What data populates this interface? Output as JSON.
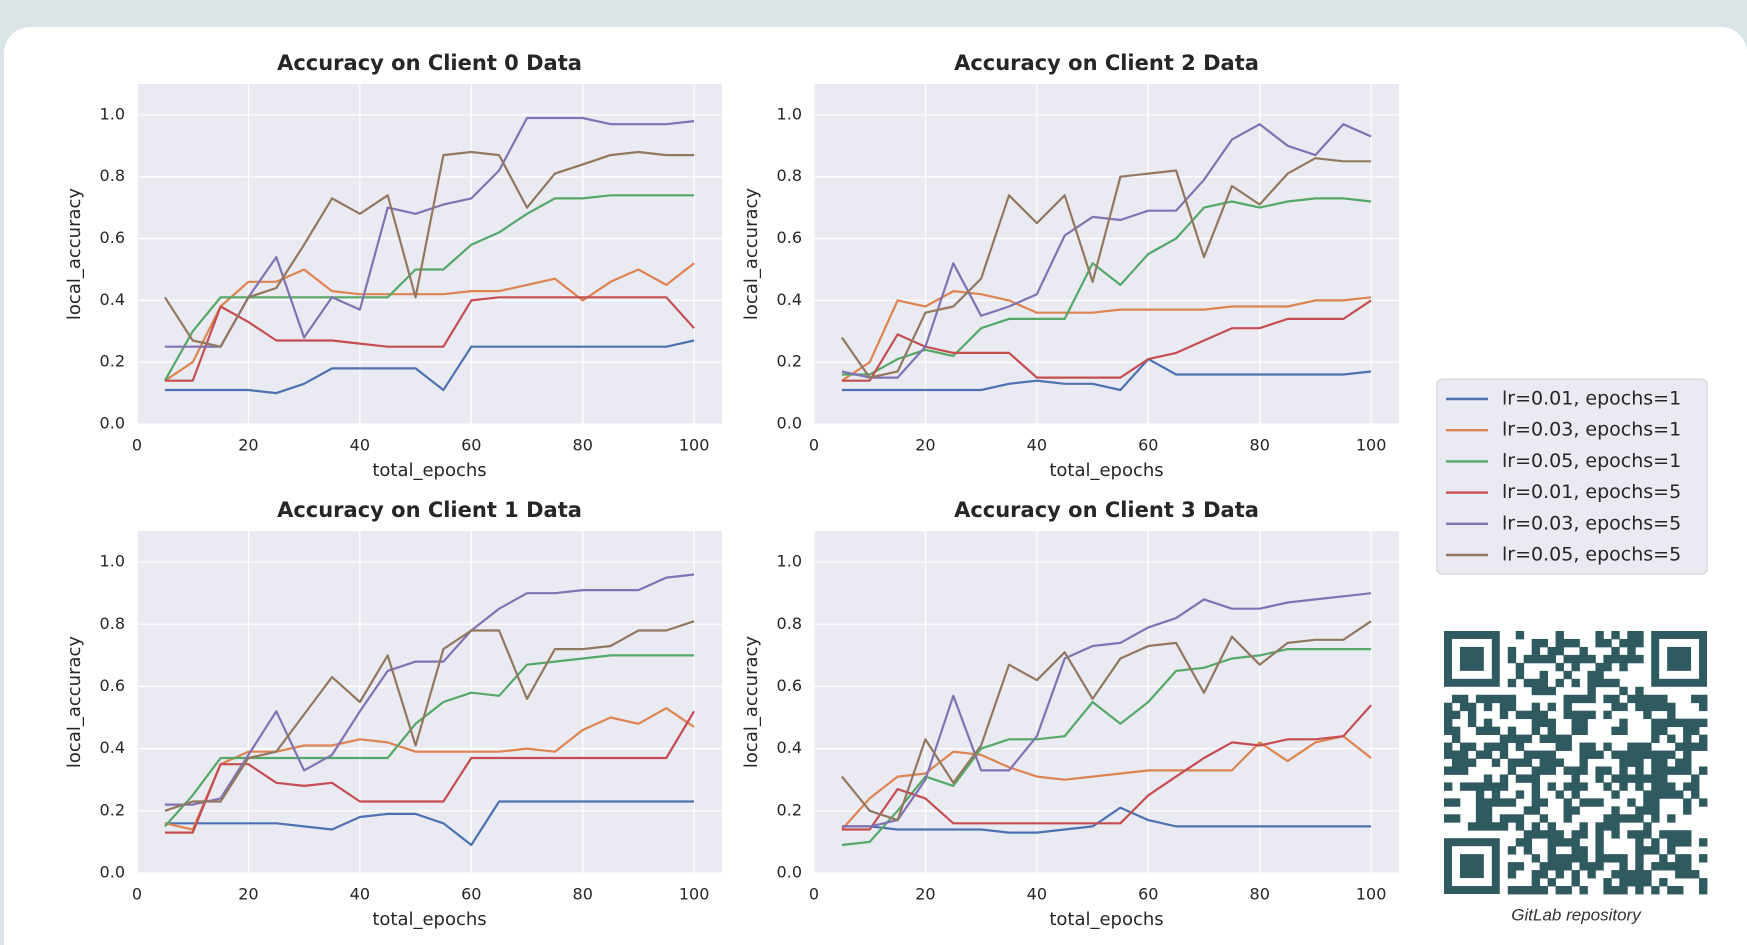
{
  "chart_data": [
    {
      "type": "line",
      "title": "Accuracy on Client 0 Data",
      "xlabel": "total_epochs",
      "ylabel": "local_accuracy",
      "x": [
        5,
        10,
        15,
        20,
        25,
        30,
        35,
        40,
        45,
        50,
        55,
        60,
        65,
        70,
        75,
        80,
        85,
        90,
        95,
        100
      ],
      "xlim": [
        0,
        105
      ],
      "ylim": [
        0,
        1.1
      ],
      "xticks": [
        0,
        20,
        40,
        60,
        80,
        100
      ],
      "yticks": [
        {
          "value": 0,
          "label": "0.0"
        },
        {
          "value": 0.2,
          "label": "0.2"
        },
        {
          "value": 0.4,
          "label": "0.4"
        },
        {
          "value": 0.6,
          "label": "0.6"
        },
        {
          "value": 0.8,
          "label": "0.8"
        },
        {
          "value": 1,
          "label": "1.0"
        }
      ],
      "grid": true,
      "series": [
        {
          "values": [
            0.11,
            0.11,
            0.11,
            0.11,
            0.1,
            0.13,
            0.18,
            0.18,
            0.18,
            0.18,
            0.11,
            0.25,
            0.25,
            0.25,
            0.25,
            0.25,
            0.25,
            0.25,
            0.25,
            0.27
          ]
        },
        {
          "values": [
            0.14,
            0.2,
            0.38,
            0.46,
            0.46,
            0.5,
            0.43,
            0.42,
            0.42,
            0.42,
            0.42,
            0.43,
            0.43,
            0.45,
            0.47,
            0.4,
            0.46,
            0.5,
            0.45,
            0.52
          ]
        },
        {
          "values": [
            0.14,
            0.3,
            0.41,
            0.41,
            0.41,
            0.41,
            0.41,
            0.41,
            0.41,
            0.5,
            0.5,
            0.58,
            0.62,
            0.68,
            0.73,
            0.73,
            0.74,
            0.74,
            0.74,
            0.74
          ]
        },
        {
          "values": [
            0.14,
            0.14,
            0.38,
            0.33,
            0.27,
            0.27,
            0.27,
            0.26,
            0.25,
            0.25,
            0.25,
            0.4,
            0.41,
            0.41,
            0.41,
            0.41,
            0.41,
            0.41,
            0.41,
            0.31
          ]
        },
        {
          "values": [
            0.25,
            0.25,
            0.25,
            0.41,
            0.54,
            0.28,
            0.41,
            0.37,
            0.7,
            0.68,
            0.71,
            0.73,
            0.82,
            0.99,
            0.99,
            0.99,
            0.97,
            0.97,
            0.97,
            0.98
          ]
        },
        {
          "values": [
            0.41,
            0.27,
            0.25,
            0.41,
            0.44,
            0.58,
            0.73,
            0.68,
            0.74,
            0.41,
            0.87,
            0.88,
            0.87,
            0.7,
            0.81,
            0.84,
            0.87,
            0.88,
            0.87,
            0.87
          ]
        }
      ]
    },
    {
      "type": "line",
      "title": "Accuracy on Client 2 Data",
      "xlabel": "total_epochs",
      "ylabel": "local_accuracy",
      "x": [
        5,
        10,
        15,
        20,
        25,
        30,
        35,
        40,
        45,
        50,
        55,
        60,
        65,
        70,
        75,
        80,
        85,
        90,
        95,
        100
      ],
      "xlim": [
        0,
        105
      ],
      "ylim": [
        0,
        1.1
      ],
      "xticks": [
        0,
        20,
        40,
        60,
        80,
        100
      ],
      "yticks": [
        {
          "value": 0,
          "label": "0.0"
        },
        {
          "value": 0.2,
          "label": "0.2"
        },
        {
          "value": 0.4,
          "label": "0.4"
        },
        {
          "value": 0.6,
          "label": "0.6"
        },
        {
          "value": 0.8,
          "label": "0.8"
        },
        {
          "value": 1,
          "label": "1.0"
        }
      ],
      "grid": true,
      "series": [
        {
          "values": [
            0.11,
            0.11,
            0.11,
            0.11,
            0.11,
            0.11,
            0.13,
            0.14,
            0.13,
            0.13,
            0.11,
            0.21,
            0.16,
            0.16,
            0.16,
            0.16,
            0.16,
            0.16,
            0.16,
            0.17
          ]
        },
        {
          "values": [
            0.14,
            0.2,
            0.4,
            0.38,
            0.43,
            0.42,
            0.4,
            0.36,
            0.36,
            0.36,
            0.37,
            0.37,
            0.37,
            0.37,
            0.38,
            0.38,
            0.38,
            0.4,
            0.4,
            0.41
          ]
        },
        {
          "values": [
            0.16,
            0.16,
            0.21,
            0.24,
            0.22,
            0.31,
            0.34,
            0.34,
            0.34,
            0.52,
            0.45,
            0.55,
            0.6,
            0.7,
            0.72,
            0.7,
            0.72,
            0.73,
            0.73,
            0.72
          ]
        },
        {
          "values": [
            0.14,
            0.14,
            0.29,
            0.25,
            0.23,
            0.23,
            0.23,
            0.15,
            0.15,
            0.15,
            0.15,
            0.21,
            0.23,
            0.27,
            0.31,
            0.31,
            0.34,
            0.34,
            0.34,
            0.4
          ]
        },
        {
          "values": [
            0.17,
            0.15,
            0.15,
            0.25,
            0.52,
            0.35,
            0.38,
            0.42,
            0.61,
            0.67,
            0.66,
            0.69,
            0.69,
            0.79,
            0.92,
            0.97,
            0.9,
            0.87,
            0.97,
            0.93
          ]
        },
        {
          "values": [
            0.28,
            0.15,
            0.17,
            0.36,
            0.38,
            0.47,
            0.74,
            0.65,
            0.74,
            0.46,
            0.8,
            0.81,
            0.82,
            0.54,
            0.77,
            0.71,
            0.81,
            0.86,
            0.85,
            0.85
          ]
        }
      ]
    },
    {
      "type": "line",
      "title": "Accuracy on Client 1 Data",
      "xlabel": "total_epochs",
      "ylabel": "local_accuracy",
      "x": [
        5,
        10,
        15,
        20,
        25,
        30,
        35,
        40,
        45,
        50,
        55,
        60,
        65,
        70,
        75,
        80,
        85,
        90,
        95,
        100
      ],
      "xlim": [
        0,
        105
      ],
      "ylim": [
        0,
        1.1
      ],
      "xticks": [
        0,
        20,
        40,
        60,
        80,
        100
      ],
      "yticks": [
        {
          "value": 0,
          "label": "0.0"
        },
        {
          "value": 0.2,
          "label": "0.2"
        },
        {
          "value": 0.4,
          "label": "0.4"
        },
        {
          "value": 0.6,
          "label": "0.6"
        },
        {
          "value": 0.8,
          "label": "0.8"
        },
        {
          "value": 1,
          "label": "1.0"
        }
      ],
      "grid": true,
      "series": [
        {
          "values": [
            0.16,
            0.16,
            0.16,
            0.16,
            0.16,
            0.15,
            0.14,
            0.18,
            0.19,
            0.19,
            0.16,
            0.09,
            0.23,
            0.23,
            0.23,
            0.23,
            0.23,
            0.23,
            0.23,
            0.23
          ]
        },
        {
          "values": [
            0.16,
            0.14,
            0.35,
            0.39,
            0.39,
            0.41,
            0.41,
            0.43,
            0.42,
            0.39,
            0.39,
            0.39,
            0.39,
            0.4,
            0.39,
            0.46,
            0.5,
            0.48,
            0.53,
            0.47
          ]
        },
        {
          "values": [
            0.15,
            0.25,
            0.37,
            0.37,
            0.37,
            0.37,
            0.37,
            0.37,
            0.37,
            0.48,
            0.55,
            0.58,
            0.57,
            0.67,
            0.68,
            0.69,
            0.7,
            0.7,
            0.7,
            0.7
          ]
        },
        {
          "values": [
            0.13,
            0.13,
            0.35,
            0.35,
            0.29,
            0.28,
            0.29,
            0.23,
            0.23,
            0.23,
            0.23,
            0.37,
            0.37,
            0.37,
            0.37,
            0.37,
            0.37,
            0.37,
            0.37,
            0.52
          ]
        },
        {
          "values": [
            0.22,
            0.22,
            0.24,
            0.38,
            0.52,
            0.33,
            0.38,
            0.52,
            0.65,
            0.68,
            0.68,
            0.78,
            0.85,
            0.9,
            0.9,
            0.91,
            0.91,
            0.91,
            0.95,
            0.96
          ]
        },
        {
          "values": [
            0.2,
            0.23,
            0.23,
            0.37,
            0.39,
            0.51,
            0.63,
            0.55,
            0.7,
            0.41,
            0.72,
            0.78,
            0.78,
            0.56,
            0.72,
            0.72,
            0.73,
            0.78,
            0.78,
            0.81
          ]
        }
      ]
    },
    {
      "type": "line",
      "title": "Accuracy on Client 3 Data",
      "xlabel": "total_epochs",
      "ylabel": "local_accuracy",
      "x": [
        5,
        10,
        15,
        20,
        25,
        30,
        35,
        40,
        45,
        50,
        55,
        60,
        65,
        70,
        75,
        80,
        85,
        90,
        95,
        100
      ],
      "xlim": [
        0,
        105
      ],
      "ylim": [
        0,
        1.1
      ],
      "xticks": [
        0,
        20,
        40,
        60,
        80,
        100
      ],
      "yticks": [
        {
          "value": 0,
          "label": "0.0"
        },
        {
          "value": 0.2,
          "label": "0.2"
        },
        {
          "value": 0.4,
          "label": "0.4"
        },
        {
          "value": 0.6,
          "label": "0.6"
        },
        {
          "value": 0.8,
          "label": "0.8"
        },
        {
          "value": 1,
          "label": "1.0"
        }
      ],
      "grid": true,
      "series": [
        {
          "values": [
            0.15,
            0.15,
            0.14,
            0.14,
            0.14,
            0.14,
            0.13,
            0.13,
            0.14,
            0.15,
            0.21,
            0.17,
            0.15,
            0.15,
            0.15,
            0.15,
            0.15,
            0.15,
            0.15,
            0.15
          ]
        },
        {
          "values": [
            0.14,
            0.24,
            0.31,
            0.32,
            0.39,
            0.38,
            0.34,
            0.31,
            0.3,
            0.31,
            0.32,
            0.33,
            0.33,
            0.33,
            0.33,
            0.42,
            0.36,
            0.42,
            0.44,
            0.37
          ]
        },
        {
          "values": [
            0.09,
            0.1,
            0.2,
            0.31,
            0.28,
            0.4,
            0.43,
            0.43,
            0.44,
            0.55,
            0.48,
            0.55,
            0.65,
            0.66,
            0.69,
            0.7,
            0.72,
            0.72,
            0.72,
            0.72
          ]
        },
        {
          "values": [
            0.14,
            0.14,
            0.27,
            0.24,
            0.16,
            0.16,
            0.16,
            0.16,
            0.16,
            0.16,
            0.16,
            0.25,
            0.31,
            0.37,
            0.42,
            0.41,
            0.43,
            0.43,
            0.44,
            0.54
          ]
        },
        {
          "values": [
            0.15,
            0.15,
            0.17,
            0.3,
            0.57,
            0.33,
            0.33,
            0.44,
            0.69,
            0.73,
            0.74,
            0.79,
            0.82,
            0.88,
            0.85,
            0.85,
            0.87,
            0.88,
            0.89,
            0.9
          ]
        },
        {
          "values": [
            0.31,
            0.2,
            0.17,
            0.43,
            0.29,
            0.41,
            0.67,
            0.62,
            0.71,
            0.56,
            0.69,
            0.73,
            0.74,
            0.58,
            0.76,
            0.67,
            0.74,
            0.75,
            0.75,
            0.81
          ]
        }
      ]
    }
  ],
  "legend": {
    "items": [
      {
        "label": "lr=0.01, epochs=1",
        "color": "#4c72b0"
      },
      {
        "label": "lr=0.03, epochs=1",
        "color": "#dd8452"
      },
      {
        "label": "lr=0.05, epochs=1",
        "color": "#55a868"
      },
      {
        "label": "lr=0.01, epochs=5",
        "color": "#c44e52"
      },
      {
        "label": "lr=0.03, epochs=5",
        "color": "#8172b3"
      },
      {
        "label": "lr=0.05, epochs=5",
        "color": "#937860"
      }
    ]
  },
  "qr_caption": "GitLab repository"
}
